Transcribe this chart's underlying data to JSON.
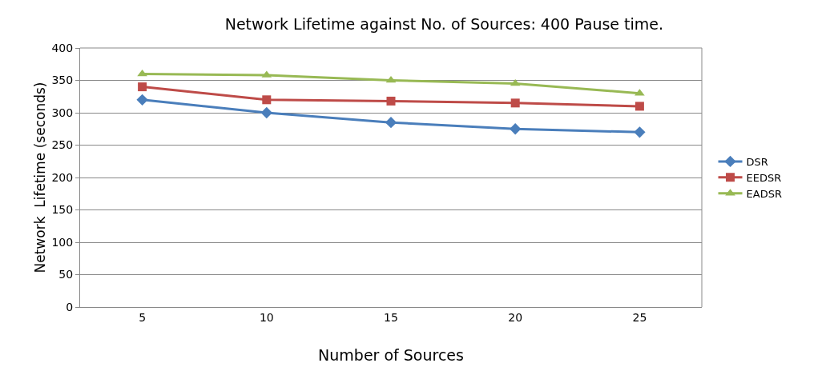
{
  "chart_data": {
    "type": "line",
    "title": "Network Lifetime against No. of Sources: 400 Pause time.",
    "xlabel": "Number of Sources",
    "ylabel": "Network  Lifetime (seconds)",
    "categories": [
      "5",
      "10",
      "15",
      "20",
      "25"
    ],
    "series": [
      {
        "name": "DSR",
        "color": "#4a7ebb",
        "marker": "diamond",
        "values": [
          320,
          300,
          285,
          275,
          270
        ]
      },
      {
        "name": "EEDSR",
        "color": "#be4b48",
        "marker": "square",
        "values": [
          340,
          320,
          318,
          315,
          310
        ]
      },
      {
        "name": "EADSR",
        "color": "#98b954",
        "marker": "triangle",
        "values": [
          360,
          358,
          350,
          345,
          330
        ]
      }
    ],
    "ylim": [
      0,
      400
    ],
    "yticks": [
      0,
      50,
      100,
      150,
      200,
      250,
      300,
      350,
      400
    ],
    "grid": "y",
    "legend": "right"
  }
}
